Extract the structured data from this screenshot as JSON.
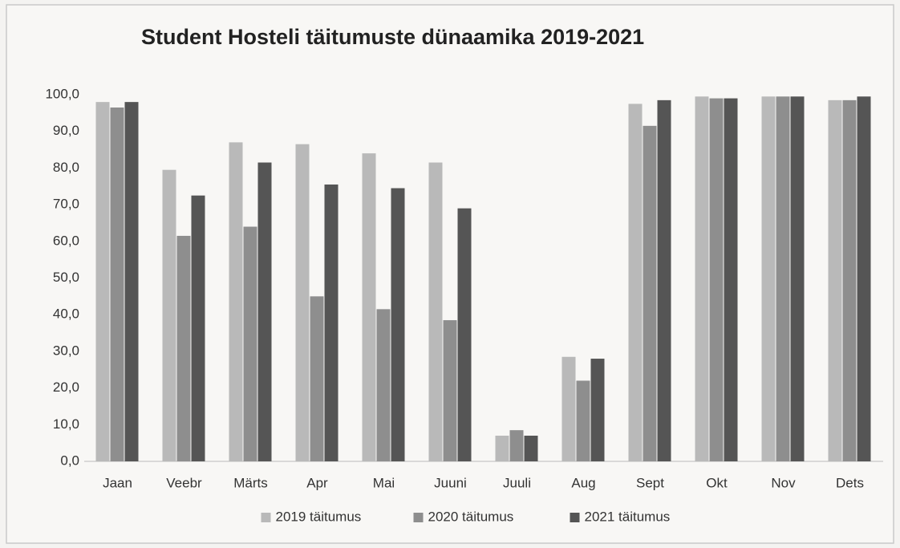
{
  "chart_data": {
    "type": "bar",
    "title": "Student Hosteli täitumuste dünaamika 2019-2021",
    "categories": [
      "Jaan",
      "Veebr",
      "Märts",
      "Apr",
      "Mai",
      "Juuni",
      "Juuli",
      "Aug",
      "Sept",
      "Okt",
      "Nov",
      "Dets"
    ],
    "series": [
      {
        "name": "2019 täitumus",
        "color": "#b9b9b9",
        "values": [
          98,
          79.5,
          87,
          86.5,
          84,
          81.5,
          7,
          28.5,
          97.5,
          99.5,
          99.5,
          98.5
        ]
      },
      {
        "name": "2020 täitumus",
        "color": "#8e8e8e",
        "values": [
          96.5,
          61.5,
          64,
          45,
          41.5,
          38.5,
          8.5,
          22,
          91.5,
          99,
          99.5,
          98.5
        ]
      },
      {
        "name": "2021 täitumus",
        "color": "#555555",
        "values": [
          98,
          72.5,
          81.5,
          75.5,
          74.5,
          69,
          7,
          28,
          98.5,
          99,
          99.5,
          99.5
        ]
      }
    ],
    "ylim": [
      0,
      100
    ],
    "yticks": [
      {
        "value": 0,
        "label": "0,0"
      },
      {
        "value": 10,
        "label": "10,0"
      },
      {
        "value": 20,
        "label": "20,0"
      },
      {
        "value": 30,
        "label": "30,0"
      },
      {
        "value": 40,
        "label": "40,0"
      },
      {
        "value": 50,
        "label": "50,0"
      },
      {
        "value": 60,
        "label": "60,0"
      },
      {
        "value": 70,
        "label": "70,0"
      },
      {
        "value": 80,
        "label": "80,0"
      },
      {
        "value": 90,
        "label": "90,0"
      },
      {
        "value": 100,
        "label": "100,0"
      }
    ],
    "grid": false,
    "legend": "bottom"
  }
}
